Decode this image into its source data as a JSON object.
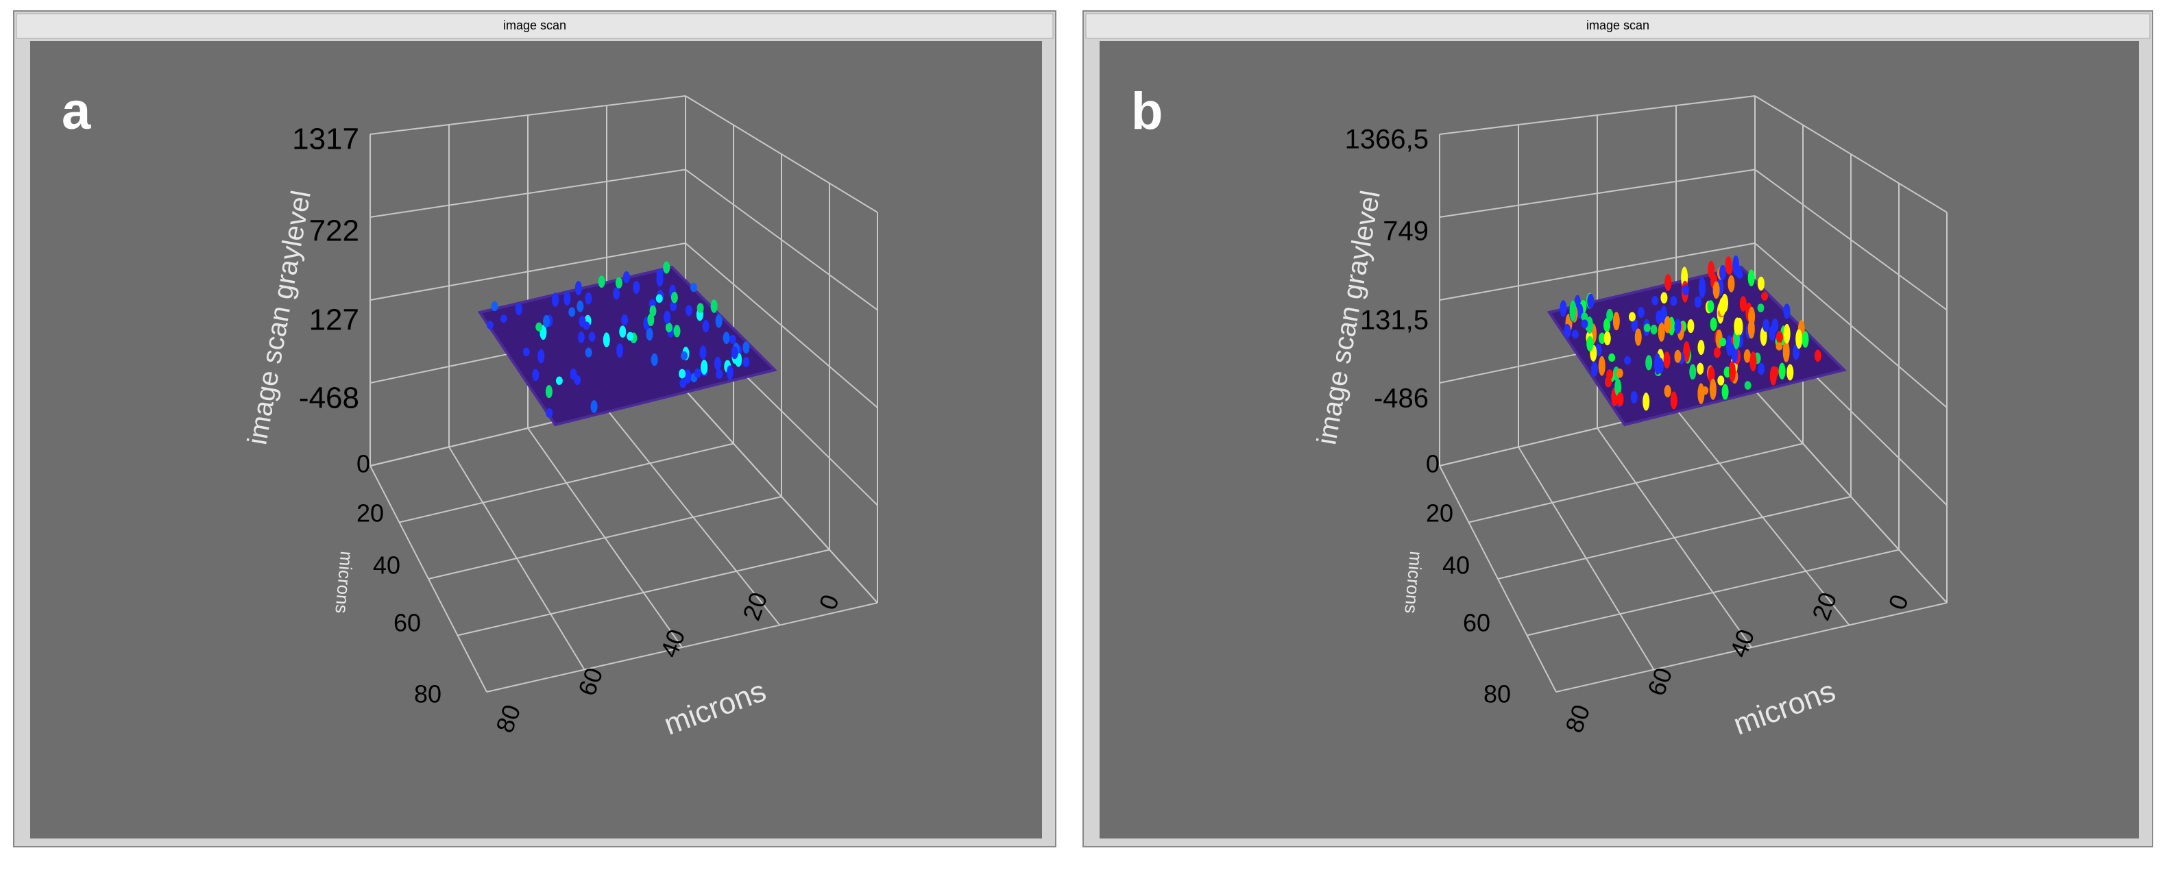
{
  "windows": [
    {
      "title": "image scan",
      "panel_label": "a",
      "z_axis_label": "image scan graylevel",
      "z_ticks": [
        "1317",
        "722",
        "127",
        "-468"
      ],
      "y_axis_label": "microns",
      "y_ticks": [
        "0",
        "20",
        "40",
        "60",
        "80"
      ],
      "x_axis_label": "microns",
      "x_ticks": [
        "80",
        "60",
        "40",
        "20",
        "0"
      ]
    },
    {
      "title": "image scan",
      "panel_label": "b",
      "z_axis_label": "image scan graylevel",
      "z_ticks": [
        "1366,5",
        "749",
        "131,5",
        "-486"
      ],
      "y_axis_label": "microns",
      "y_ticks": [
        "0",
        "20",
        "40",
        "60",
        "80"
      ],
      "x_axis_label": "microns",
      "x_ticks": [
        "80",
        "60",
        "40",
        "20",
        "0"
      ]
    }
  ]
}
